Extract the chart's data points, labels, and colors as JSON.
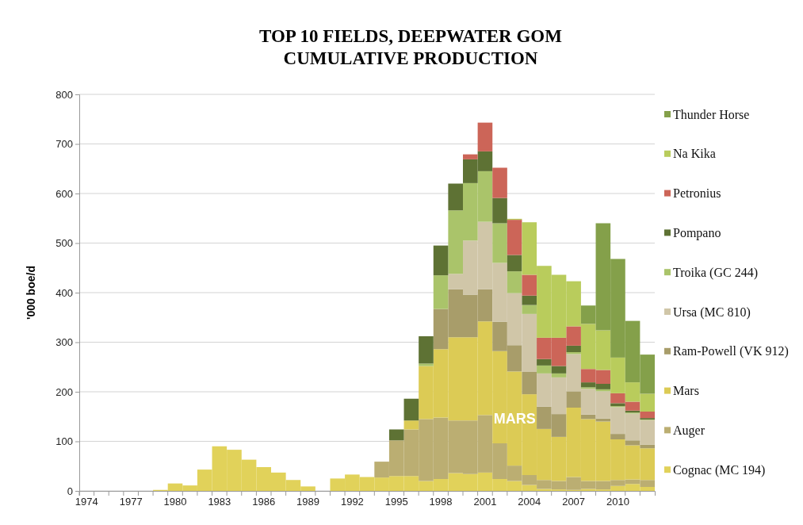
{
  "chart_data": {
    "type": "bar",
    "stacked": true,
    "title": "TOP 10 FIELDS, DEEPWATER GOM",
    "subtitle": "CUMULATIVE PRODUCTION",
    "ylabel": "'000 boe/d",
    "categories": [
      "1974",
      null,
      null,
      "1977",
      null,
      null,
      "1980",
      null,
      null,
      "1983",
      null,
      null,
      "1986",
      null,
      null,
      "1989",
      null,
      null,
      "1992",
      null,
      null,
      "1995",
      null,
      null,
      "1998",
      null,
      null,
      "2001",
      null,
      null,
      "2004",
      null,
      null,
      "2007",
      null,
      null,
      "2010",
      null,
      null
    ],
    "ylim": [
      0,
      800
    ],
    "yticks": [
      0,
      100,
      200,
      300,
      400,
      500,
      600,
      700,
      800
    ],
    "grid": "y",
    "legend": "right",
    "annotations": [
      "MARS"
    ],
    "series": [
      {
        "name": "Cognac (MC 194)",
        "color": "#e1d25a",
        "values": [
          0,
          0,
          0,
          0,
          0,
          2,
          15,
          11,
          43,
          90,
          83,
          63,
          48,
          37,
          22,
          9,
          0,
          25,
          33,
          28,
          27,
          30,
          30,
          20,
          24,
          36,
          34,
          37,
          24,
          20,
          12,
          4,
          3,
          2,
          4,
          3,
          10,
          14,
          8
        ]
      },
      {
        "name": "Auger",
        "color": "#bbae72",
        "values": [
          0,
          0,
          0,
          0,
          0,
          0,
          0,
          0,
          0,
          0,
          0,
          0,
          0,
          0,
          0,
          0,
          0,
          0,
          0,
          0,
          32,
          72,
          94,
          125,
          124,
          106,
          108,
          116,
          72,
          31,
          20,
          18,
          17,
          26,
          16,
          17,
          12,
          9,
          14
        ]
      },
      {
        "name": "Mars",
        "color": "#dccb55",
        "values": [
          0,
          0,
          0,
          0,
          0,
          0,
          0,
          0,
          0,
          0,
          0,
          0,
          0,
          0,
          0,
          0,
          0,
          0,
          0,
          0,
          0,
          0,
          18,
          107,
          138,
          168,
          168,
          189,
          186,
          190,
          163,
          103,
          89,
          140,
          125,
          120,
          82,
          69,
          64
        ]
      },
      {
        "name": "Ram-Powell (VK 912)",
        "color": "#a89d6a",
        "values": [
          0,
          0,
          0,
          0,
          0,
          0,
          0,
          0,
          0,
          0,
          0,
          0,
          0,
          0,
          0,
          0,
          0,
          0,
          0,
          0,
          0,
          0,
          0,
          0,
          81,
          97,
          86,
          65,
          59,
          53,
          45,
          45,
          46,
          33,
          9,
          6,
          11,
          10,
          7
        ]
      },
      {
        "name": "Ursa (MC 810)",
        "color": "#d0c6a8",
        "values": [
          0,
          0,
          0,
          0,
          0,
          0,
          0,
          0,
          0,
          0,
          0,
          0,
          0,
          0,
          0,
          0,
          0,
          0,
          0,
          0,
          0,
          0,
          0,
          0,
          0,
          31,
          109,
          136,
          119,
          105,
          117,
          67,
          74,
          75,
          52,
          55,
          54,
          54,
          50
        ]
      },
      {
        "name": "Troika (GC 244)",
        "color": "#aac46a",
        "values": [
          0,
          0,
          0,
          0,
          0,
          0,
          0,
          0,
          0,
          0,
          0,
          0,
          0,
          0,
          0,
          0,
          0,
          0,
          0,
          0,
          0,
          0,
          0,
          5,
          68,
          128,
          116,
          102,
          80,
          44,
          18,
          16,
          8,
          4,
          3,
          4,
          2,
          2,
          1
        ]
      },
      {
        "name": "Pompano",
        "color": "#5e7234",
        "values": [
          0,
          0,
          0,
          0,
          0,
          0,
          0,
          0,
          0,
          0,
          0,
          0,
          0,
          0,
          0,
          0,
          0,
          0,
          0,
          0,
          0,
          22,
          44,
          55,
          60,
          54,
          48,
          40,
          51,
          33,
          19,
          13,
          15,
          13,
          10,
          11,
          6,
          4,
          3
        ]
      },
      {
        "name": "Petronius",
        "color": "#cc6558",
        "values": [
          0,
          0,
          0,
          0,
          0,
          0,
          0,
          0,
          0,
          0,
          0,
          0,
          0,
          0,
          0,
          0,
          0,
          0,
          0,
          0,
          0,
          0,
          0,
          0,
          0,
          0,
          10,
          58,
          61,
          71,
          42,
          43,
          57,
          39,
          27,
          28,
          20,
          18,
          13
        ]
      },
      {
        "name": "Na Kika",
        "color": "#b9cc5c",
        "values": [
          0,
          0,
          0,
          0,
          0,
          0,
          0,
          0,
          0,
          0,
          0,
          0,
          0,
          0,
          0,
          0,
          0,
          0,
          0,
          0,
          0,
          0,
          0,
          0,
          0,
          0,
          0,
          0,
          0,
          2,
          106,
          145,
          127,
          91,
          91,
          80,
          72,
          39,
          36
        ]
      },
      {
        "name": "Thunder Horse",
        "color": "#84a04a",
        "values": [
          0,
          0,
          0,
          0,
          0,
          0,
          0,
          0,
          0,
          0,
          0,
          0,
          0,
          0,
          0,
          0,
          0,
          0,
          0,
          0,
          0,
          0,
          0,
          0,
          0,
          0,
          0,
          0,
          0,
          0,
          0,
          0,
          0,
          0,
          37,
          216,
          199,
          124,
          79
        ]
      }
    ]
  }
}
